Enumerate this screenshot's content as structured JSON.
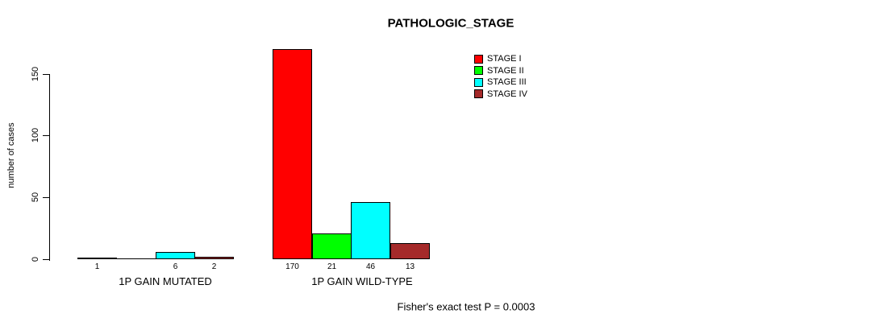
{
  "chart_data": {
    "type": "bar",
    "title": "PATHOLOGIC_STAGE",
    "xlabel": "",
    "ylabel": "number of cases",
    "categories": [
      "1P GAIN MUTATED",
      "1P GAIN WILD-TYPE"
    ],
    "series": [
      {
        "name": "STAGE I",
        "color": "#ff0000",
        "values": [
          1,
          170
        ]
      },
      {
        "name": "STAGE II",
        "color": "#00ff00",
        "values": [
          0,
          21
        ]
      },
      {
        "name": "STAGE III",
        "color": "#00ffff",
        "values": [
          6,
          46
        ]
      },
      {
        "name": "STAGE IV",
        "color": "#a52a2a",
        "values": [
          2,
          13
        ]
      }
    ],
    "yticks": [
      0,
      50,
      100,
      150
    ],
    "ylim": [
      0,
      170
    ],
    "grid": false,
    "legend_position": "top-right",
    "bar_value_labels_shown": true,
    "hide_zero_value_labels": true,
    "annotation": "Fisher's exact test P = 0.0003",
    "bar_border_color": "#000000",
    "background_color": "#ffffff",
    "text_color": "#000000"
  }
}
